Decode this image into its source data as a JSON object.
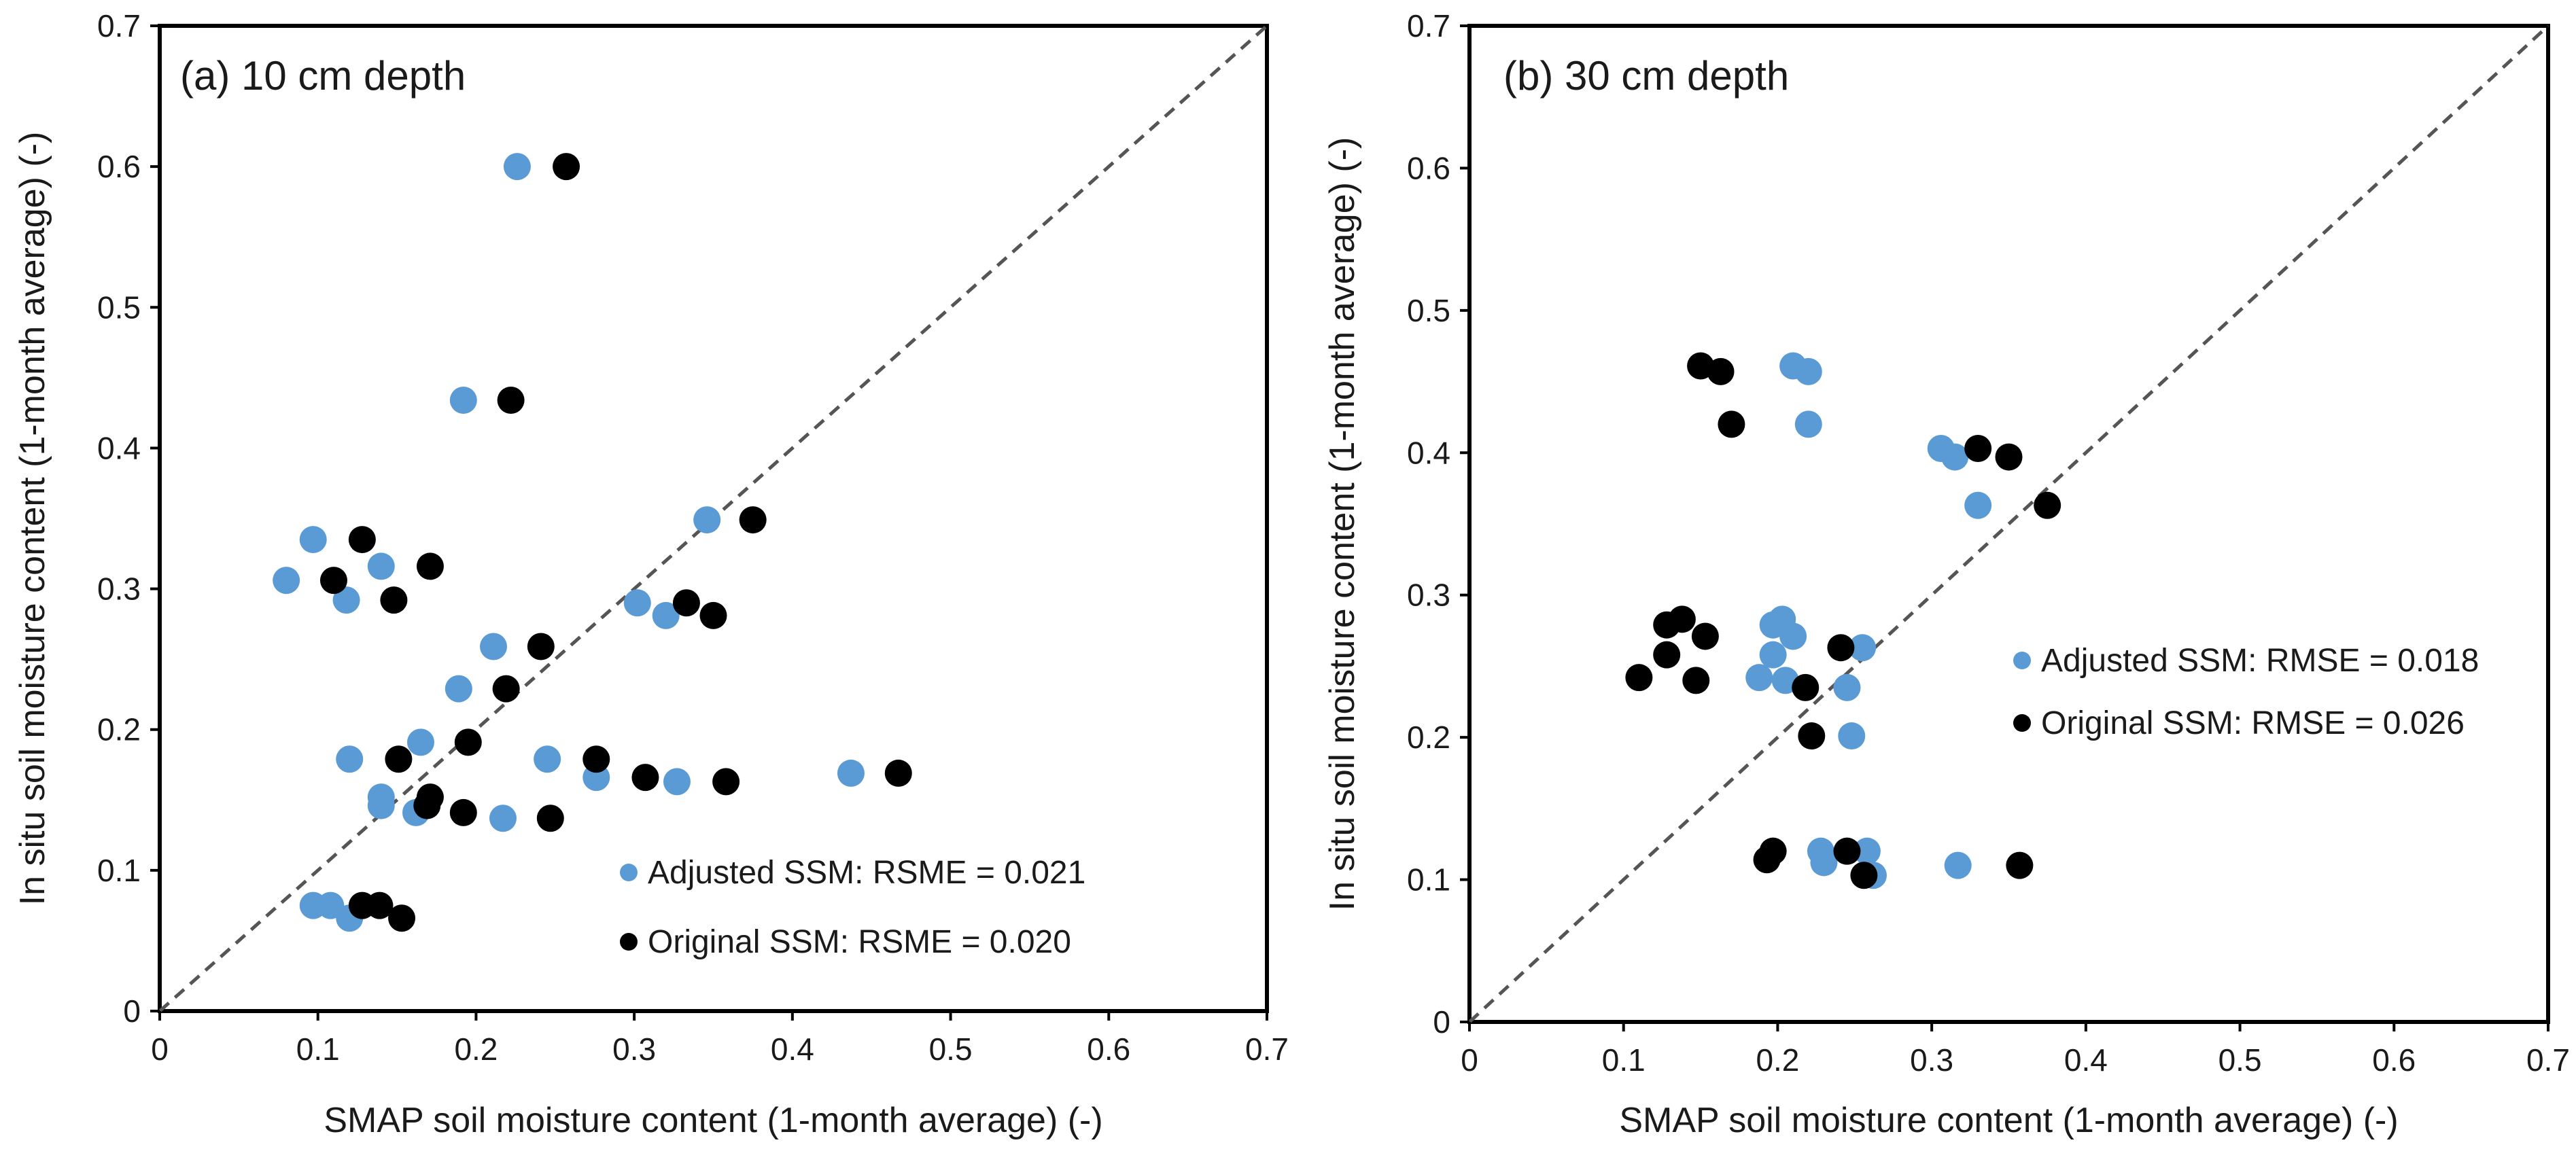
{
  "chart_data": [
    {
      "type": "scatter",
      "title": "(a) 10 cm depth",
      "xlabel": "SMAP soil moisture content (1-month average) (-)",
      "ylabel": "In situ soil moisture content (1-month average) (-)",
      "xlim": [
        0,
        0.7
      ],
      "ylim": [
        0,
        0.7
      ],
      "xticks": [
        "0",
        "0.1",
        "0.2",
        "0.3",
        "0.4",
        "0.5",
        "0.6",
        "0.7"
      ],
      "yticks": [
        "0",
        "0.1",
        "0.2",
        "0.3",
        "0.4",
        "0.5",
        "0.6",
        "0.7"
      ],
      "grid": false,
      "legend_position": "bottom-right",
      "reference_line": "1:1 dashed",
      "series": [
        {
          "name": "Adjusted SSM",
          "legend_label": "Adjusted SSM: RSME = 0.021",
          "color": "#5b9bd5",
          "points": [
            [
              0.226,
              0.6
            ],
            [
              0.192,
              0.434
            ],
            [
              0.346,
              0.349
            ],
            [
              0.097,
              0.335
            ],
            [
              0.08,
              0.306
            ],
            [
              0.14,
              0.316
            ],
            [
              0.118,
              0.292
            ],
            [
              0.302,
              0.29
            ],
            [
              0.32,
              0.281
            ],
            [
              0.211,
              0.259
            ],
            [
              0.189,
              0.229
            ],
            [
              0.12,
              0.179
            ],
            [
              0.165,
              0.191
            ],
            [
              0.245,
              0.179
            ],
            [
              0.276,
              0.166
            ],
            [
              0.327,
              0.163
            ],
            [
              0.437,
              0.169
            ],
            [
              0.14,
              0.152
            ],
            [
              0.14,
              0.146
            ],
            [
              0.162,
              0.141
            ],
            [
              0.217,
              0.137
            ],
            [
              0.097,
              0.075
            ],
            [
              0.108,
              0.075
            ],
            [
              0.12,
              0.066
            ]
          ]
        },
        {
          "name": "Original SSM",
          "legend_label": "Original SSM: RSME = 0.020",
          "color": "#000000",
          "points": [
            [
              0.257,
              0.6
            ],
            [
              0.222,
              0.434
            ],
            [
              0.375,
              0.349
            ],
            [
              0.128,
              0.335
            ],
            [
              0.11,
              0.306
            ],
            [
              0.171,
              0.316
            ],
            [
              0.148,
              0.292
            ],
            [
              0.333,
              0.29
            ],
            [
              0.35,
              0.281
            ],
            [
              0.241,
              0.259
            ],
            [
              0.219,
              0.229
            ],
            [
              0.151,
              0.179
            ],
            [
              0.195,
              0.191
            ],
            [
              0.276,
              0.179
            ],
            [
              0.307,
              0.166
            ],
            [
              0.358,
              0.163
            ],
            [
              0.467,
              0.169
            ],
            [
              0.171,
              0.152
            ],
            [
              0.169,
              0.146
            ],
            [
              0.192,
              0.141
            ],
            [
              0.247,
              0.137
            ],
            [
              0.128,
              0.075
            ],
            [
              0.139,
              0.075
            ],
            [
              0.153,
              0.066
            ]
          ]
        }
      ]
    },
    {
      "type": "scatter",
      "title": "(b) 30 cm depth",
      "xlabel": "SMAP soil moisture content (1-month average) (-)",
      "ylabel": "In situ soil moisture content (1-month average) (-)",
      "xlim": [
        0,
        0.7
      ],
      "ylim": [
        0,
        0.7
      ],
      "xticks": [
        "0",
        "0.1",
        "0.2",
        "0.3",
        "0.4",
        "0.5",
        "0.6",
        "0.7"
      ],
      "yticks": [
        "0",
        "0.1",
        "0.2",
        "0.3",
        "0.4",
        "0.5",
        "0.6",
        "0.7"
      ],
      "grid": false,
      "legend_position": "center-right",
      "reference_line": "1:1 dashed",
      "series": [
        {
          "name": "Adjusted SSM",
          "legend_label": "Adjusted SSM: RMSE = 0.018",
          "color": "#5b9bd5",
          "points": [
            [
              0.21,
              0.461
            ],
            [
              0.22,
              0.457
            ],
            [
              0.22,
              0.42
            ],
            [
              0.306,
              0.403
            ],
            [
              0.315,
              0.397
            ],
            [
              0.33,
              0.363
            ],
            [
              0.203,
              0.283
            ],
            [
              0.197,
              0.279
            ],
            [
              0.21,
              0.271
            ],
            [
              0.255,
              0.263
            ],
            [
              0.197,
              0.258
            ],
            [
              0.188,
              0.242
            ],
            [
              0.205,
              0.24
            ],
            [
              0.245,
              0.235
            ],
            [
              0.248,
              0.201
            ],
            [
              0.228,
              0.12
            ],
            [
              0.258,
              0.12
            ],
            [
              0.317,
              0.11
            ],
            [
              0.23,
              0.112
            ],
            [
              0.262,
              0.103
            ]
          ]
        },
        {
          "name": "Original SSM",
          "legend_label": "Original SSM: RMSE = 0.026",
          "color": "#000000",
          "points": [
            [
              0.15,
              0.461
            ],
            [
              0.163,
              0.457
            ],
            [
              0.17,
              0.42
            ],
            [
              0.33,
              0.403
            ],
            [
              0.35,
              0.397
            ],
            [
              0.375,
              0.363
            ],
            [
              0.138,
              0.283
            ],
            [
              0.128,
              0.279
            ],
            [
              0.153,
              0.271
            ],
            [
              0.241,
              0.263
            ],
            [
              0.128,
              0.258
            ],
            [
              0.11,
              0.242
            ],
            [
              0.147,
              0.24
            ],
            [
              0.218,
              0.235
            ],
            [
              0.222,
              0.201
            ],
            [
              0.197,
              0.12
            ],
            [
              0.245,
              0.12
            ],
            [
              0.357,
              0.11
            ],
            [
              0.193,
              0.114
            ],
            [
              0.256,
              0.103
            ]
          ]
        }
      ]
    }
  ]
}
